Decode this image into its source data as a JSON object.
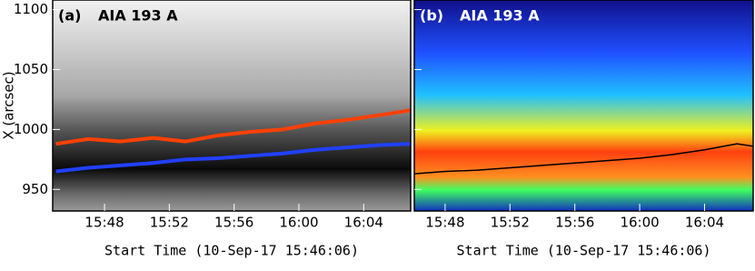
{
  "chart_data": [
    {
      "type": "line",
      "panel_label": "(a)",
      "title": "AIA 193 A",
      "ylabel": "X (arcsec)",
      "xlabel": "Start Time (10-Sep-17 15:46:06)",
      "colormap": "gray",
      "x": [
        45,
        47,
        49,
        51,
        53,
        55,
        57,
        59,
        61,
        63,
        65,
        66.9
      ],
      "series": [
        {
          "color": "#ff4000",
          "values": [
            988,
            992,
            990,
            993,
            990,
            995,
            998,
            1000,
            1005,
            1008,
            1012,
            1016
          ]
        },
        {
          "color": "#2040ff",
          "values": [
            965,
            968,
            970,
            972,
            975,
            976,
            978,
            980,
            983,
            985,
            987,
            988
          ]
        }
      ],
      "xlim": [
        44.8,
        66.9
      ],
      "ylim": [
        932,
        1108
      ],
      "xticks": [
        {
          "value": 48,
          "label": "15:48"
        },
        {
          "value": 52,
          "label": "15:52"
        },
        {
          "value": 56,
          "label": "15:56"
        },
        {
          "value": 60,
          "label": "16:00"
        },
        {
          "value": 64,
          "label": "16:04"
        }
      ],
      "yticks": [
        950,
        1000,
        1050,
        1100
      ],
      "show_ytick_labels": true
    },
    {
      "type": "line",
      "panel_label": "(b)",
      "title": "AIA 193 A",
      "xlabel": "Start Time (10-Sep-17 15:46:06)",
      "colormap": "jet",
      "x": [
        46.1,
        48,
        50,
        52,
        54,
        56,
        58,
        60,
        62,
        64,
        66,
        67
      ],
      "series": [
        {
          "color": "#000000",
          "values": [
            963,
            965,
            966,
            968,
            970,
            972,
            974,
            976,
            979,
            983,
            988,
            986
          ]
        }
      ],
      "xlim": [
        46.1,
        67
      ],
      "ylim": [
        932,
        1108
      ],
      "xticks": [
        {
          "value": 48,
          "label": "15:48"
        },
        {
          "value": 52,
          "label": "15:52"
        },
        {
          "value": 56,
          "label": "15:56"
        },
        {
          "value": 60,
          "label": "16:00"
        },
        {
          "value": 64,
          "label": "16:04"
        }
      ],
      "yticks": [
        950,
        1000,
        1050,
        1100
      ],
      "show_ytick_labels": false
    }
  ]
}
